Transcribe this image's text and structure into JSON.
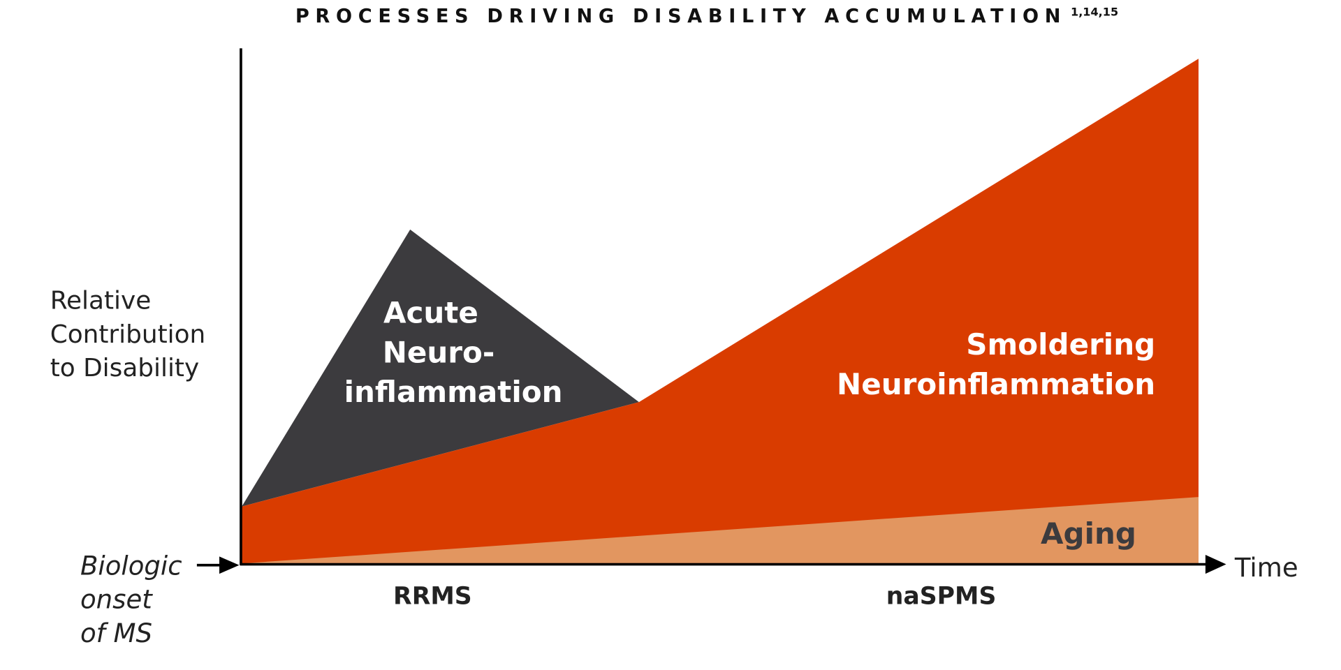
{
  "title": "PROCESSES DRIVING DISABILITY ACCUMULATION",
  "title_refs": "1,14,15",
  "y_axis_label": [
    "Relative",
    "Contribution",
    "to Disability"
  ],
  "x_axis_label": "Time",
  "onset_label": [
    "Biologic",
    "onset",
    "of MS"
  ],
  "regions": {
    "acute": [
      "Acute",
      "Neuro-",
      "inflammation"
    ],
    "smoldering": [
      "Smoldering",
      "Neuroinflammation"
    ],
    "aging": "Aging"
  },
  "phases": [
    "RRMS",
    "naSPMS"
  ]
}
